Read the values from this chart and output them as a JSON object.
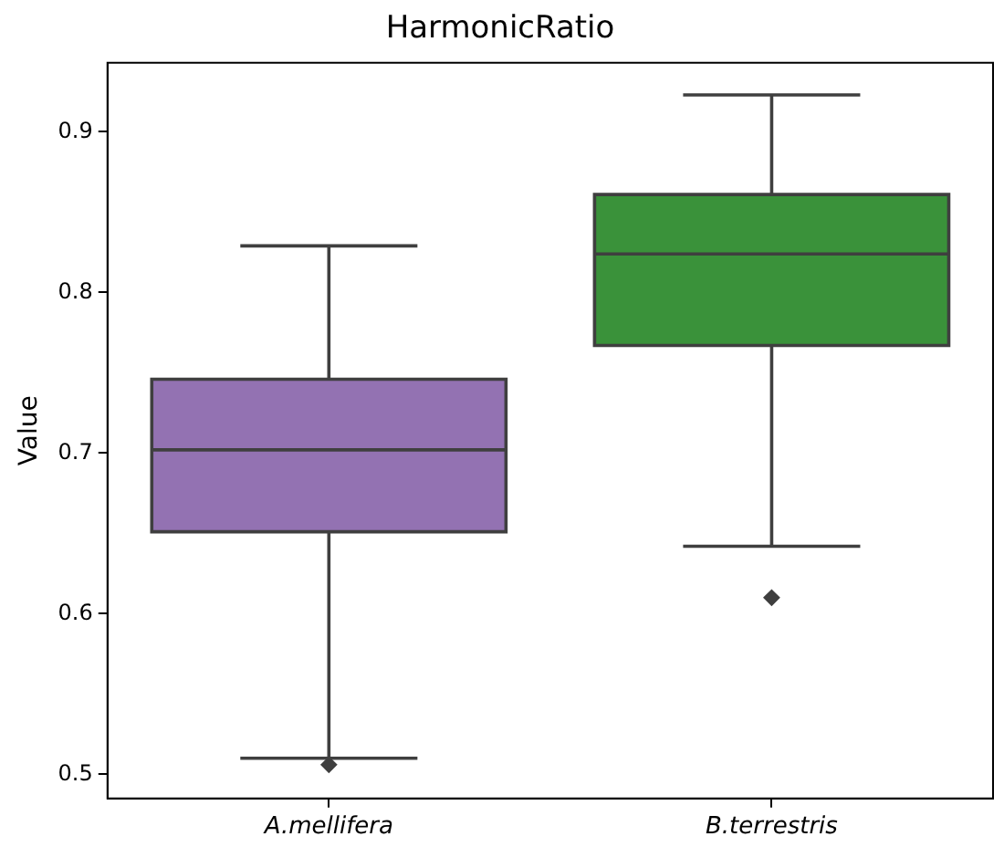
{
  "chart_data": {
    "type": "box",
    "title": "HarmonicRatio",
    "ylabel": "Value",
    "categories": [
      "A.mellifera",
      "B.terrestris"
    ],
    "colors": [
      "#9372b2",
      "#3a923a"
    ],
    "boxes": [
      {
        "low": 0.51,
        "q1": 0.651,
        "median": 0.702,
        "q3": 0.746,
        "high": 0.829,
        "outliers": [
          0.506
        ]
      },
      {
        "low": 0.642,
        "q1": 0.767,
        "median": 0.824,
        "q3": 0.861,
        "high": 0.923,
        "outliers": [
          0.61
        ]
      }
    ],
    "ylim": [
      0.485,
      0.943
    ],
    "yticks": [
      0.5,
      0.6,
      0.7,
      0.8,
      0.9
    ],
    "grid": false,
    "legend": false,
    "marker": "diamond"
  }
}
